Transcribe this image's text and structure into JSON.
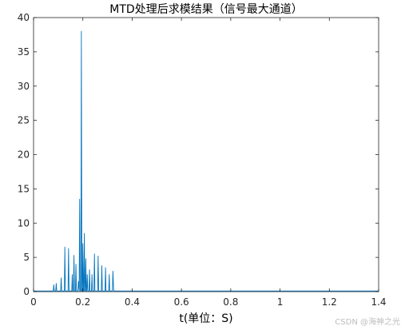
{
  "chart_data": {
    "type": "line",
    "title": "MTD处理后求模结果（信号最大通道）",
    "xlabel": "t(单位：S)",
    "ylabel": "",
    "xlim": [
      0,
      1.4
    ],
    "ylim": [
      0,
      40
    ],
    "xticks": [
      0,
      0.2,
      0.4,
      0.6,
      0.8,
      1,
      1.2,
      1.4
    ],
    "xtick_labels": [
      "0",
      "0.2",
      "0.4",
      "0.6",
      "0.8",
      "1",
      "1.2",
      "1.4"
    ],
    "yticks": [
      0,
      5,
      10,
      15,
      20,
      25,
      30,
      35,
      40
    ],
    "ytick_labels": [
      "0",
      "5",
      "10",
      "15",
      "20",
      "25",
      "30",
      "35",
      "40"
    ],
    "grid": false,
    "line_color": "#0072bd",
    "series": [
      {
        "x": [
          0,
          0.08,
          0.082,
          0.084,
          0.09,
          0.092,
          0.094,
          0.1,
          0.11,
          0.112,
          0.114,
          0.12,
          0.125,
          0.127,
          0.129,
          0.135,
          0.14,
          0.142,
          0.144,
          0.15,
          0.155,
          0.157,
          0.159,
          0.162,
          0.164,
          0.166,
          0.17,
          0.172,
          0.174,
          0.178,
          0.18,
          0.182,
          0.185,
          0.187,
          0.189,
          0.192,
          0.194,
          0.196,
          0.198,
          0.2,
          0.202,
          0.204,
          0.206,
          0.208,
          0.21,
          0.212,
          0.214,
          0.216,
          0.218,
          0.22,
          0.225,
          0.227,
          0.229,
          0.235,
          0.237,
          0.239,
          0.245,
          0.247,
          0.249,
          0.26,
          0.262,
          0.264,
          0.275,
          0.277,
          0.279,
          0.29,
          0.292,
          0.294,
          0.305,
          0.307,
          0.309,
          0.32,
          0.322,
          0.325,
          0.33,
          0.4,
          0.6,
          0.8,
          1.0,
          1.2,
          1.4
        ],
        "y": [
          0.1,
          0.1,
          1.0,
          0.1,
          0.1,
          1.2,
          0.1,
          0.1,
          0.1,
          2.0,
          0.1,
          0.1,
          0.1,
          6.5,
          0.1,
          0.1,
          0.1,
          6.3,
          0.1,
          0.1,
          0.1,
          2.5,
          0.1,
          0.1,
          5.3,
          0.1,
          0.1,
          4.0,
          0.1,
          0.1,
          0.1,
          1.5,
          0.1,
          13.5,
          0.1,
          0.1,
          38.0,
          0.1,
          0.1,
          7.0,
          0.1,
          0.1,
          8.5,
          0.1,
          0.1,
          4.8,
          0.1,
          0.1,
          2.5,
          0.1,
          0.1,
          3.2,
          0.1,
          0.1,
          2.5,
          0.1,
          0.1,
          5.5,
          0.1,
          0.1,
          5.2,
          0.1,
          0.1,
          3.8,
          0.1,
          0.1,
          3.5,
          0.1,
          0.1,
          2.5,
          0.1,
          0.1,
          3.0,
          0.1,
          0.1,
          0.1,
          0.1,
          0.1,
          0.1,
          0.1,
          0.1
        ]
      }
    ]
  },
  "watermark": "CSDN @海神之光"
}
